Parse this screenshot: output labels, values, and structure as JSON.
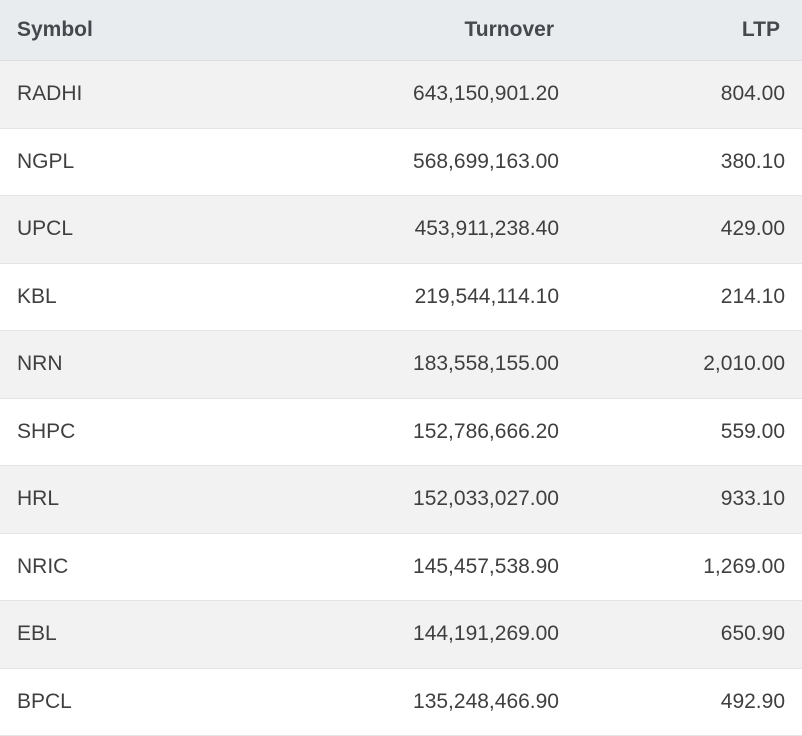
{
  "table": {
    "headers": {
      "symbol": "Symbol",
      "turnover": "Turnover",
      "ltp": "LTP"
    },
    "rows": [
      {
        "symbol": "RADHI",
        "turnover": "643,150,901.20",
        "ltp": "804.00"
      },
      {
        "symbol": "NGPL",
        "turnover": "568,699,163.00",
        "ltp": "380.10"
      },
      {
        "symbol": "UPCL",
        "turnover": "453,911,238.40",
        "ltp": "429.00"
      },
      {
        "symbol": "KBL",
        "turnover": "219,544,114.10",
        "ltp": "214.10"
      },
      {
        "symbol": "NRN",
        "turnover": "183,558,155.00",
        "ltp": "2,010.00"
      },
      {
        "symbol": "SHPC",
        "turnover": "152,786,666.20",
        "ltp": "559.00"
      },
      {
        "symbol": "HRL",
        "turnover": "152,033,027.00",
        "ltp": "933.10"
      },
      {
        "symbol": "NRIC",
        "turnover": "145,457,538.90",
        "ltp": "1,269.00"
      },
      {
        "symbol": "EBL",
        "turnover": "144,191,269.00",
        "ltp": "650.90"
      },
      {
        "symbol": "BPCL",
        "turnover": "135,248,466.90",
        "ltp": "492.90"
      }
    ]
  },
  "colors": {
    "header_bg": "#e9ecef",
    "row_striped_bg": "#f2f2f2",
    "row_plain_bg": "#ffffff",
    "text": "#3f3f3f"
  }
}
